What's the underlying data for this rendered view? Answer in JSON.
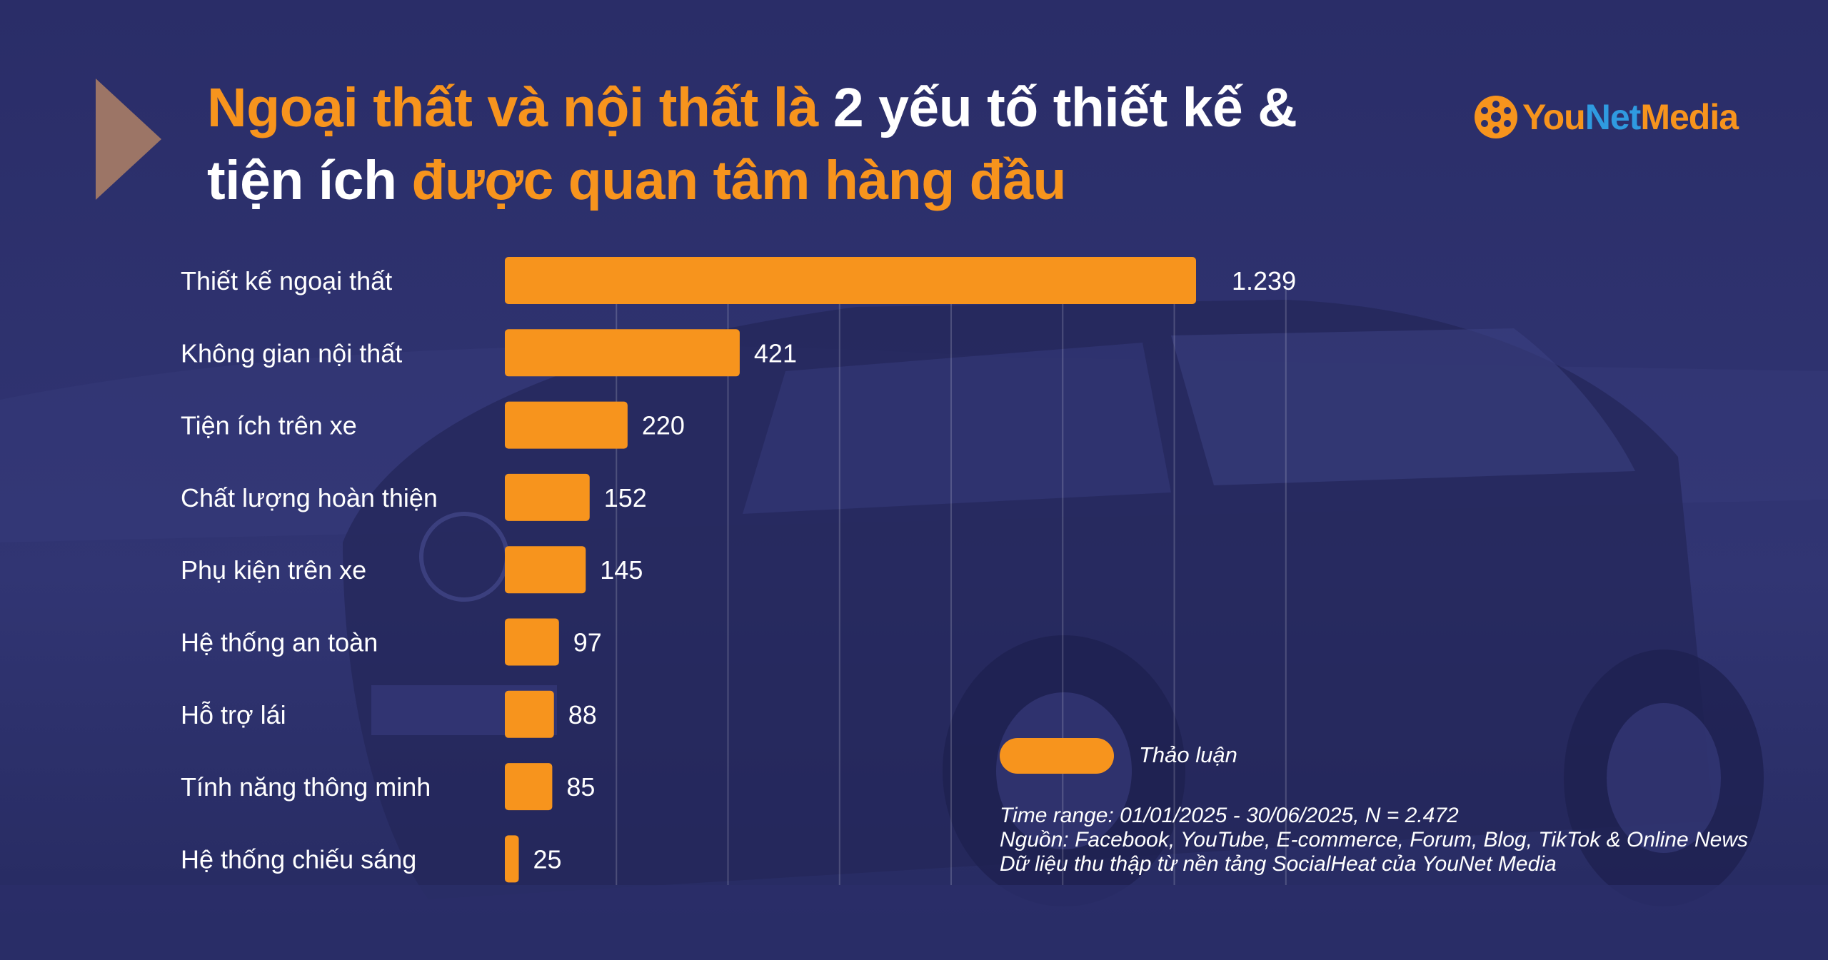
{
  "title": {
    "line1_orange": "Ngoại thất và nội thất là",
    "line1_white": " 2 yếu tố thiết kế &",
    "line2_white": "tiện ích ",
    "line2_orange": "được quan tâm hàng đầu"
  },
  "brand": {
    "you": "You",
    "net": "Net",
    "media": "Media"
  },
  "colors": {
    "background": "#2c2f6b",
    "bar": "#f7941d",
    "accent_orange": "#f7941d",
    "brand_blue": "#2f9ae0",
    "text": "#ffffff"
  },
  "chart_data": {
    "type": "bar",
    "orientation": "horizontal",
    "categories": [
      "Thiết kế ngoại thất",
      "Không gian nội thất",
      "Tiện ích trên xe",
      "Chất lượng hoàn thiện",
      "Phụ kiện trên xe",
      "Hệ thống an toàn",
      "Hỗ trợ lái",
      "Tính năng thông minh",
      "Hệ thống chiếu sáng"
    ],
    "values": [
      1239,
      421,
      220,
      152,
      145,
      97,
      88,
      85,
      25
    ],
    "value_labels": [
      "1.239",
      "421",
      "220",
      "152",
      "145",
      "97",
      "88",
      "85",
      "25"
    ],
    "series": [
      {
        "name": "Thảo luận",
        "values": [
          1239,
          421,
          220,
          152,
          145,
          97,
          88,
          85,
          25
        ]
      }
    ],
    "xlim": [
      0,
      1400
    ],
    "grid": true,
    "legend": "bottom-right"
  },
  "legend": {
    "label": "Thảo luận"
  },
  "notes": {
    "time_range": "Time range: 01/01/2025 - 30/06/2025, N = 2.472",
    "source": "Nguồn: Facebook, YouTube, E-commerce, Forum, Blog, TikTok & Online News",
    "collected": "Dữ liệu thu thập từ nền tảng SocialHeat của YouNet Media"
  }
}
